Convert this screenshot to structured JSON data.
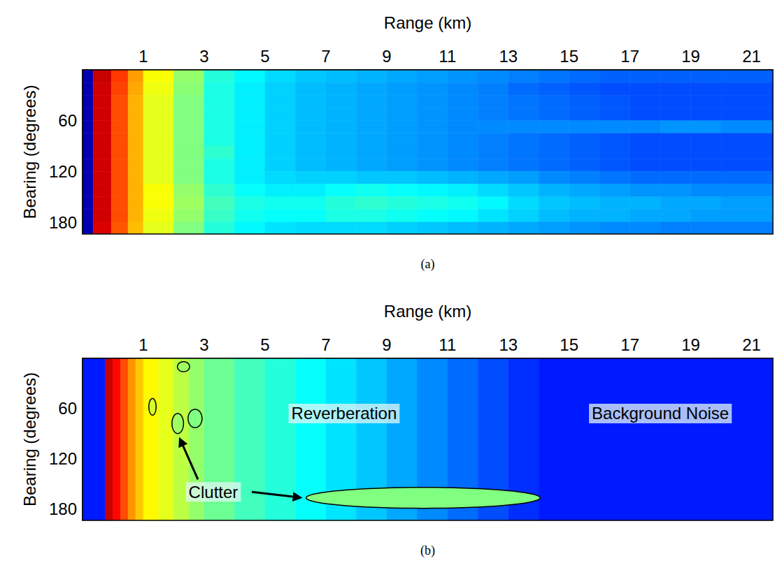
{
  "chart_data": [
    {
      "type": "heatmap",
      "panel_label": "(a)",
      "x_label": "Range (km)",
      "y_label": "Bearing (degrees)",
      "xlim": [
        -1,
        21.7
      ],
      "xticks": [
        1,
        3,
        5,
        7,
        9,
        11,
        13,
        15,
        17,
        19,
        21
      ],
      "ylim": [
        0,
        194
      ],
      "yticks": [
        60,
        120,
        180
      ],
      "color_range": [
        0,
        10
      ],
      "x_edges": [
        -1,
        -0.65,
        -0.05,
        0.5,
        1,
        2,
        3,
        4,
        5,
        6,
        7,
        8,
        9,
        10,
        11,
        12,
        13,
        14,
        15,
        16,
        17,
        18,
        19,
        20,
        21.7
      ],
      "y_edges": [
        0,
        15,
        30,
        45,
        60,
        75,
        90,
        105,
        120,
        135,
        150,
        165,
        180,
        194
      ],
      "cells": [
        [
          0.5,
          9.3,
          8.2,
          7.2,
          6.2,
          5.2,
          4.1,
          3.7,
          3.4,
          3.2,
          3.1,
          3.0,
          2.9,
          2.8,
          2.7,
          2.6,
          2.5,
          2.4,
          2.3,
          2.2,
          2.2,
          2.2,
          2.2,
          2.2
        ],
        [
          0.5,
          9.2,
          8.1,
          7.1,
          6.1,
          5.1,
          4.0,
          3.6,
          3.3,
          3.1,
          3.0,
          2.9,
          2.8,
          2.7,
          2.6,
          2.5,
          2.3,
          2.2,
          2.1,
          2.0,
          2.0,
          2.0,
          2.0,
          2.0
        ],
        [
          0.5,
          9.2,
          8,
          7,
          6,
          5,
          4,
          3.6,
          3.3,
          3.1,
          3.0,
          2.9,
          2.8,
          2.7,
          2.6,
          2.5,
          2.4,
          2.3,
          2.2,
          2.1,
          2.0,
          2.0,
          2.0,
          2.0
        ],
        [
          0.5,
          9.2,
          8,
          7,
          6,
          5,
          4,
          3.6,
          3.3,
          3.1,
          3.0,
          2.9,
          2.8,
          2.7,
          2.6,
          2.5,
          2.4,
          2.3,
          2.2,
          2.1,
          2.0,
          2.0,
          2.0,
          2.0
        ],
        [
          0.5,
          9.2,
          8,
          7,
          6,
          5,
          4,
          3.6,
          3.3,
          3.1,
          3.0,
          2.9,
          2.8,
          2.7,
          2.6,
          2.6,
          2.6,
          2.6,
          2.6,
          2.6,
          2.6,
          2.7,
          2.7,
          2.6
        ],
        [
          0.5,
          9.2,
          8,
          7,
          6,
          5,
          4,
          3.6,
          3.3,
          3.1,
          3.0,
          2.9,
          2.8,
          2.7,
          2.6,
          2.5,
          2.4,
          2.3,
          2.2,
          2.1,
          2.0,
          2.0,
          2.0,
          2.0
        ],
        [
          0.5,
          9.2,
          8,
          7,
          6,
          5,
          4.2,
          3.6,
          3.3,
          3.1,
          3.0,
          2.9,
          2.8,
          2.7,
          2.6,
          2.5,
          2.4,
          2.3,
          2.2,
          2.1,
          2.0,
          2.0,
          2.0,
          2.0
        ],
        [
          0.5,
          9.2,
          8,
          7,
          6,
          5,
          4,
          3.6,
          3.3,
          3.1,
          3.0,
          2.9,
          2.8,
          2.7,
          2.6,
          2.5,
          2.4,
          2.3,
          2.2,
          2.1,
          2.0,
          2.0,
          2.0,
          2.0
        ],
        [
          0.5,
          9.2,
          8,
          7,
          6,
          5,
          4,
          3.6,
          3.4,
          3.3,
          3.3,
          3.2,
          3.2,
          3.1,
          3.0,
          2.9,
          2.8,
          2.6,
          2.5,
          2.4,
          2.3,
          2.3,
          2.3,
          2.3
        ],
        [
          0.5,
          9.2,
          8,
          7,
          6.2,
          5.2,
          4.2,
          3.8,
          3.6,
          3.6,
          3.8,
          3.9,
          3.8,
          3.7,
          3.6,
          3.4,
          3.2,
          3.0,
          2.9,
          2.8,
          2.7,
          2.7,
          2.6,
          2.6
        ],
        [
          0.5,
          9.2,
          8,
          7,
          6.2,
          5.3,
          4.4,
          4.0,
          3.9,
          3.9,
          4.1,
          4.2,
          4.1,
          4.0,
          3.9,
          3.7,
          3.4,
          3.2,
          3.1,
          3.0,
          3.0,
          2.9,
          2.9,
          2.8
        ],
        [
          0.5,
          9.2,
          8,
          7,
          6.1,
          5.2,
          4.3,
          3.9,
          3.8,
          3.8,
          4.0,
          4.0,
          3.9,
          3.8,
          3.7,
          3.5,
          3.3,
          3.1,
          3.0,
          3.0,
          2.9,
          2.9,
          2.8,
          2.8
        ],
        [
          0.5,
          9.1,
          7.9,
          6.9,
          6,
          5,
          4.1,
          3.7,
          3.5,
          3.4,
          3.4,
          3.4,
          3.3,
          3.2,
          3.1,
          3.0,
          2.9,
          2.8,
          2.7,
          2.6,
          2.6,
          2.5,
          2.5,
          2.5
        ]
      ]
    },
    {
      "type": "heatmap",
      "panel_label": "(b)",
      "x_label": "Range (km)",
      "y_label": "Bearing (degrees)",
      "xlim": [
        -1,
        21.7
      ],
      "xticks": [
        1,
        3,
        5,
        7,
        9,
        11,
        13,
        15,
        17,
        19,
        21
      ],
      "ylim": [
        0,
        194
      ],
      "yticks": [
        60,
        120,
        180
      ],
      "color_range": [
        0,
        10
      ],
      "x_edges": [
        -1,
        -0.25,
        0,
        0.25,
        0.5,
        0.75,
        1,
        1.5,
        2,
        2.5,
        3,
        4,
        5,
        6,
        7,
        8,
        9,
        10,
        11,
        12,
        13,
        14,
        21.7
      ],
      "y_edges": [
        0,
        194
      ],
      "cells": [
        [
          1.5,
          9.3,
          8.7,
          8,
          7.3,
          6.8,
          6.3,
          6,
          5.6,
          5.2,
          4.8,
          4.4,
          4.1,
          3.8,
          3.5,
          3.2,
          2.9,
          2.6,
          2.3,
          2.0,
          1.7,
          1.5
        ]
      ],
      "clutter": [
        {
          "range": 2.32,
          "bearing": 10,
          "range_radius": 0.2,
          "bearing_radius": 6,
          "level": 5.3
        },
        {
          "range": 1.3,
          "bearing": 58,
          "range_radius": 0.12,
          "bearing_radius": 10,
          "level": 5.8
        },
        {
          "range": 2.13,
          "bearing": 78,
          "range_radius": 0.19,
          "bearing_radius": 12,
          "level": 5.3
        },
        {
          "range": 2.7,
          "bearing": 72,
          "range_radius": 0.23,
          "bearing_radius": 11,
          "level": 5.0
        },
        {
          "range": 10.2,
          "bearing": 167,
          "range_radius": 3.85,
          "bearing_radius": 12.5,
          "level": 5.0
        }
      ],
      "clutter_label": {
        "text": "Clutter",
        "range": 3.3,
        "bearing": 160
      },
      "annotations": [
        {
          "text": "Reverberation",
          "range": 7.6,
          "bearing": 66
        },
        {
          "text": "Background Noise",
          "range": 18,
          "bearing": 66
        }
      ]
    }
  ]
}
